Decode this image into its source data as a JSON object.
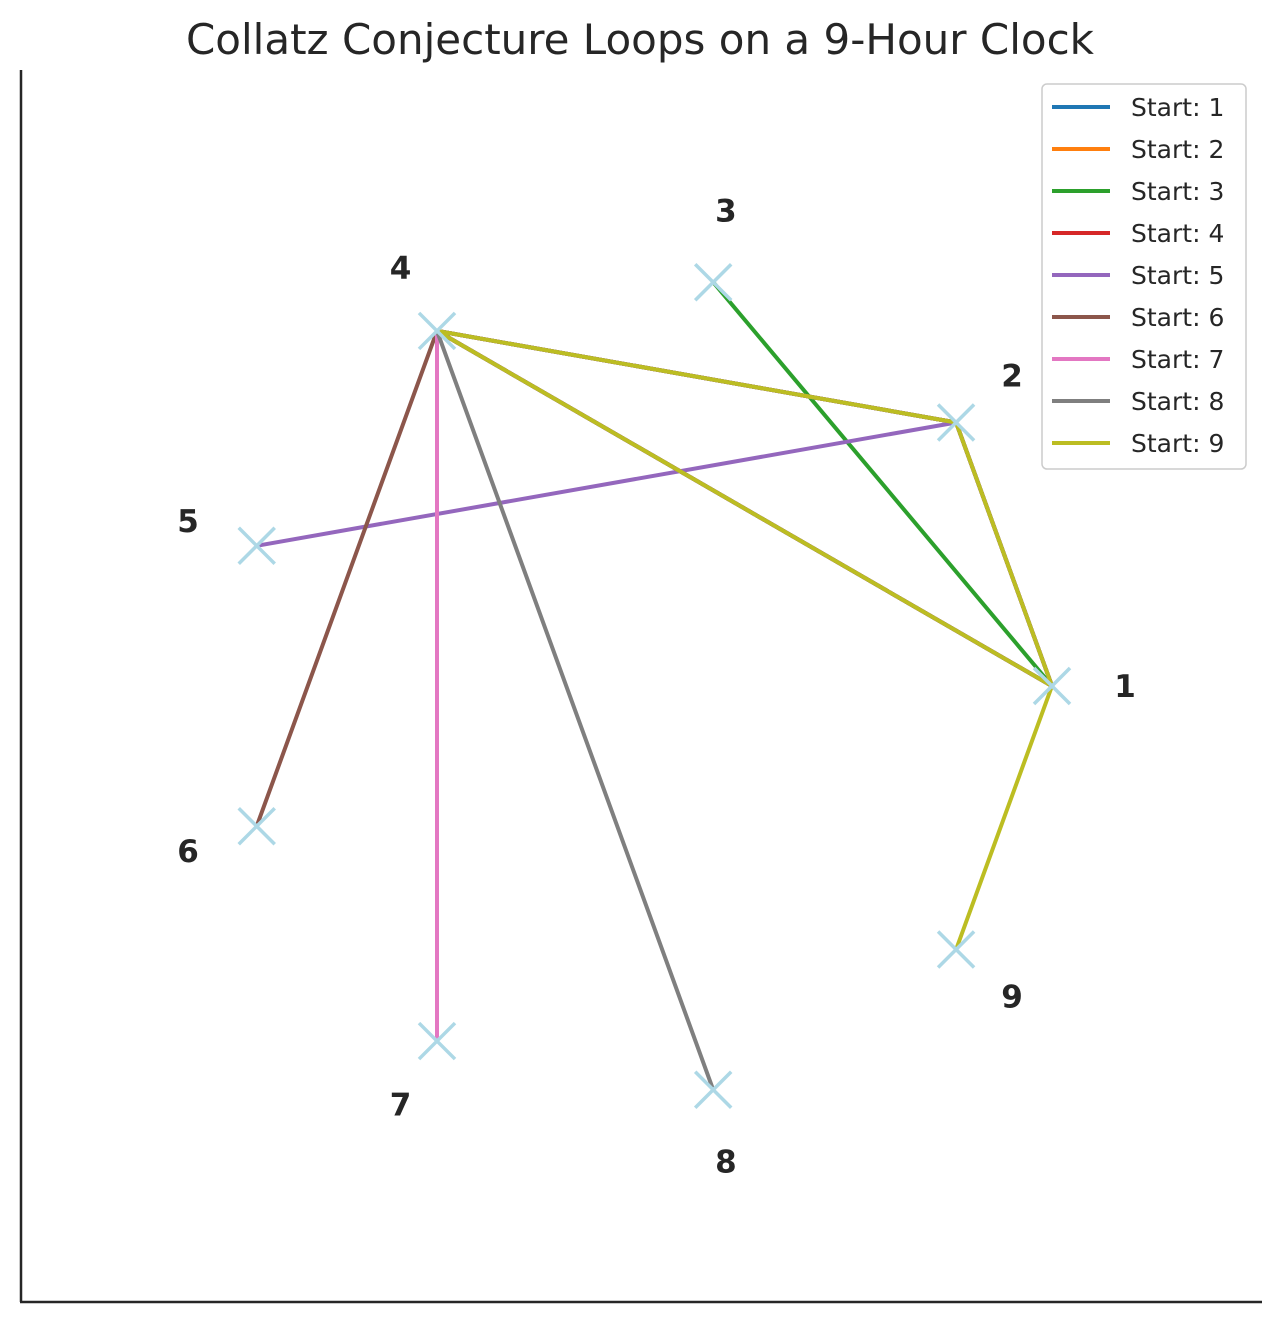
{
  "chart_data": {
    "type": "line",
    "title": "Collatz Conjecture Loops on a 9-Hour Clock",
    "xlabel": "",
    "ylabel": "",
    "grid": false,
    "legend_placement": "top-right",
    "axis_ticks_visible": false,
    "clock": {
      "hours": 9,
      "hour_labels": [
        "1",
        "2",
        "3",
        "4",
        "5",
        "6",
        "7",
        "8",
        "9"
      ],
      "marker": "x",
      "marker_color": "#add8e6",
      "label_color": "#262626"
    },
    "series": [
      {
        "name": "Start: 1",
        "color": "#1f77b4",
        "path": [
          1,
          4,
          2,
          1
        ]
      },
      {
        "name": "Start: 2",
        "color": "#ff7f0e",
        "path": [
          2,
          1,
          4,
          2
        ]
      },
      {
        "name": "Start: 3",
        "color": "#2ca02c",
        "path": [
          3,
          1,
          4,
          2,
          1
        ]
      },
      {
        "name": "Start: 4",
        "color": "#d62728",
        "path": [
          4,
          2,
          1,
          4
        ]
      },
      {
        "name": "Start: 5",
        "color": "#9467bd",
        "path": [
          5,
          2,
          1,
          4,
          2
        ]
      },
      {
        "name": "Start: 6",
        "color": "#8c564b",
        "path": [
          6,
          4,
          2,
          1,
          4
        ]
      },
      {
        "name": "Start: 7",
        "color": "#e377c2",
        "path": [
          7,
          4,
          2,
          1,
          4
        ]
      },
      {
        "name": "Start: 8",
        "color": "#7f7f7f",
        "path": [
          8,
          4,
          2,
          1,
          4
        ]
      },
      {
        "name": "Start: 9",
        "color": "#bcbd22",
        "path": [
          9,
          1,
          4,
          2,
          1
        ]
      }
    ]
  }
}
